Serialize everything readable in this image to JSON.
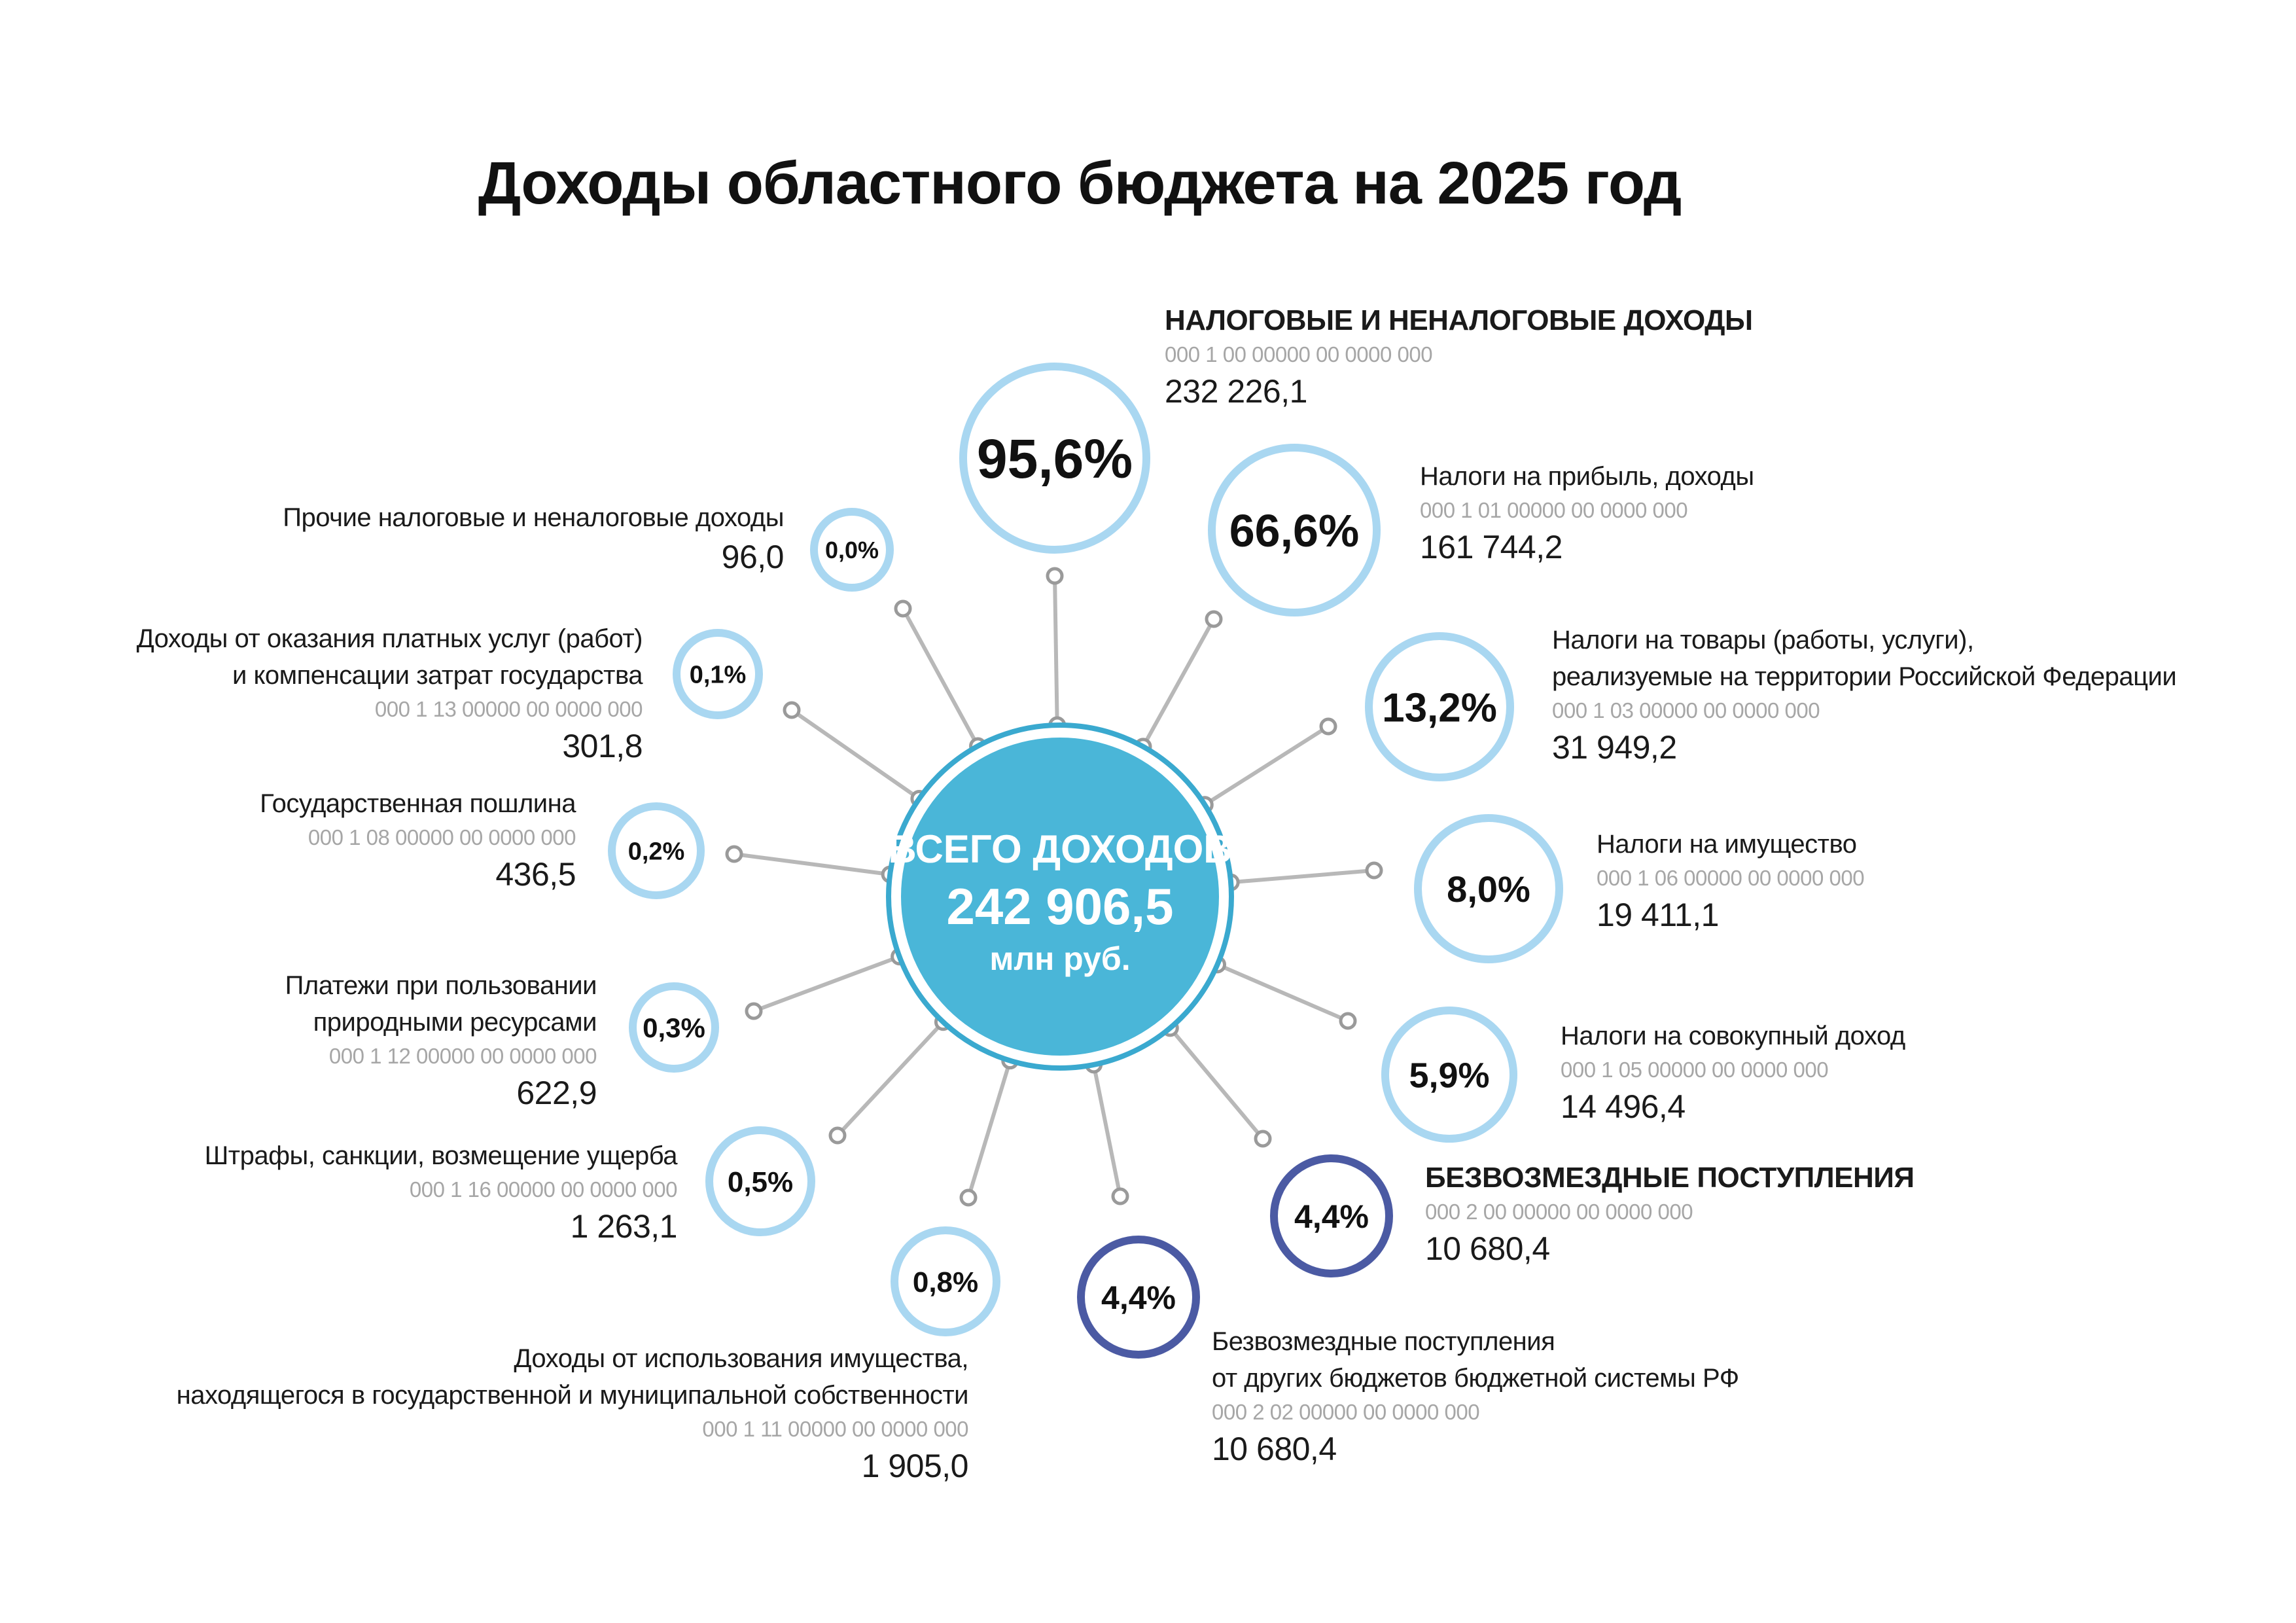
{
  "title": "Доходы областного бюджета на 2025 год",
  "center": {
    "label": "ВСЕГО ДОХОДОВ",
    "value": "242 906,5",
    "unit": "млн руб."
  },
  "colors": {
    "light_circle": "#a9d7f1",
    "dark_circle": "#4b5aa3",
    "center_fill": "#4ab6d8",
    "center_ring": "#3aa9cf",
    "spoke": "#b8b8b8"
  },
  "items": [
    {
      "id": "tax-nontax",
      "pct": "95,6%",
      "name": "НАЛОГОВЫЕ И НЕНАЛОГОВЫЕ ДОХОДЫ",
      "code": "000 1 00 00000 00 0000 000",
      "value": "232 226,1",
      "bold": true
    },
    {
      "id": "profit-tax",
      "pct": "66,6%",
      "name": "Налоги на прибыль, доходы",
      "code": "000 1 01 00000 00 0000 000",
      "value": "161 744,2"
    },
    {
      "id": "goods-tax",
      "pct": "13,2%",
      "name": "Налоги на товары (работы, услуги),\nреализуемые на территории Российской Федерации",
      "code": "000 1 03 00000 00 0000 000",
      "value": "31 949,2"
    },
    {
      "id": "property-tax",
      "pct": "8,0%",
      "name": "Налоги на имущество",
      "code": "000 1 06 00000 00 0000 000",
      "value": "19 411,1"
    },
    {
      "id": "aggregate-tax",
      "pct": "5,9%",
      "name": "Налоги на совокупный доход",
      "code": "000 1 05 00000 00 0000 000",
      "value": "14 496,4"
    },
    {
      "id": "grants-total",
      "pct": "4,4%",
      "name": "БЕЗВОЗМЕЗДНЫЕ ПОСТУПЛЕНИЯ",
      "code": "000 2 00 00000 00 0000 000",
      "value": "10 680,4",
      "bold": true
    },
    {
      "id": "grants-budgets",
      "pct": "4,4%",
      "name": "Безвозмездные поступления\nот других бюджетов бюджетной системы РФ",
      "code": "000 2 02 00000 00 0000 000",
      "value": "10 680,4"
    },
    {
      "id": "property-use",
      "pct": "0,8%",
      "name": "Доходы от использования имущества,\nнаходящегося в государственной и муниципальной собственности",
      "code": "000 1 11 00000 00 0000 000",
      "value": "1 905,0"
    },
    {
      "id": "fines",
      "pct": "0,5%",
      "name": "Штрафы, санкции, возмещение ущерба",
      "code": "000 1 16 00000 00 0000 000",
      "value": "1 263,1"
    },
    {
      "id": "natural-resources",
      "pct": "0,3%",
      "name": "Платежи при пользовании\nприродными ресурсами",
      "code": "000 1 12 00000 00 0000 000",
      "value": "622,9"
    },
    {
      "id": "state-duty",
      "pct": "0,2%",
      "name": "Государственная пошлина",
      "code": "000 1 08 00000 00 0000 000",
      "value": "436,5"
    },
    {
      "id": "paid-services",
      "pct": "0,1%",
      "name": "Доходы от оказания платных услуг (работ)\nи компенсации затрат государства",
      "code": "000 1 13 00000 00 0000 000",
      "value": "301,8"
    },
    {
      "id": "other",
      "pct": "0,0%",
      "name": "Прочие налоговые и неналоговые доходы",
      "value": "96,0"
    }
  ]
}
